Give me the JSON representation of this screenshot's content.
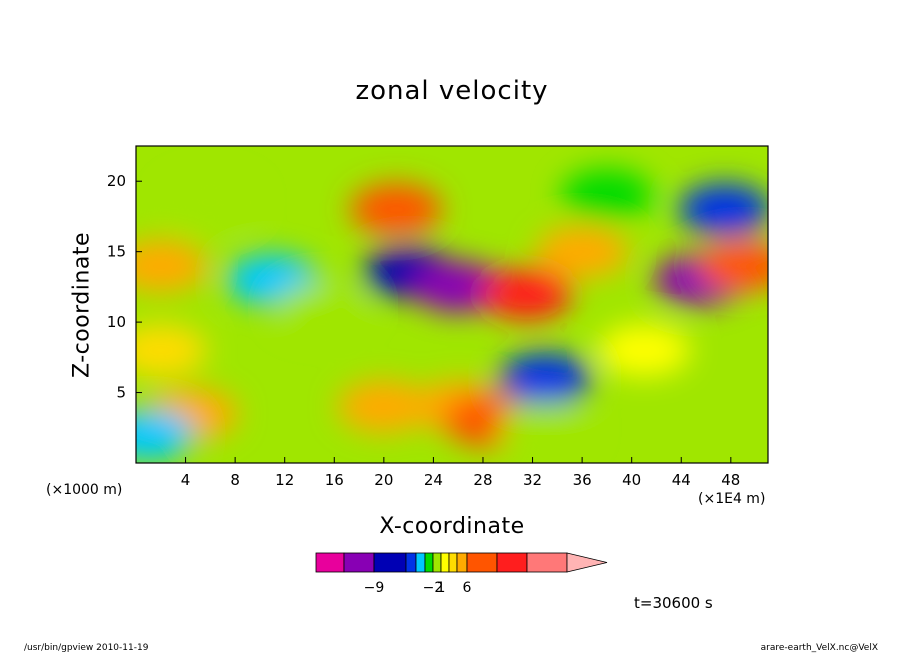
{
  "chart_data": {
    "type": "heatmap",
    "title": "zonal velocity",
    "xlabel": "X-coordinate",
    "ylabel": "Z-coordinate",
    "x_unit_left": "(×1000 m)",
    "x_unit_right": "(×1E4 m)",
    "xlim": [
      0,
      51
    ],
    "ylim": [
      0,
      22.5
    ],
    "x_ticks": [
      4,
      8,
      12,
      16,
      20,
      24,
      28,
      32,
      36,
      40,
      44,
      48
    ],
    "y_ticks": [
      5,
      10,
      15,
      20
    ],
    "colorbar": {
      "colors": [
        "#e8009c",
        "#8800b4",
        "#0000b4",
        "#0032e6",
        "#00c8ff",
        "#00dc00",
        "#a0e600",
        "#ffff00",
        "#ffdc00",
        "#ffaa00",
        "#ff5500",
        "#ff1e1e",
        "#ff7878",
        "#ffb4b4"
      ],
      "labels": [
        {
          "text": "−9",
          "index": 1
        },
        {
          "text": "−2",
          "index": 5
        },
        {
          "text": "1",
          "index": 6
        },
        {
          "text": "6",
          "index": 9
        }
      ]
    },
    "features": [
      {
        "x": 4.5,
        "z": 3.5,
        "value": 6
      },
      {
        "x": 11,
        "z": 13,
        "value": -2
      },
      {
        "x": 15,
        "z": 11,
        "value": 1
      },
      {
        "x": 20,
        "z": 4,
        "value": 6
      },
      {
        "x": 21,
        "z": 18,
        "value": 8
      },
      {
        "x": 22,
        "z": 13.5,
        "value": -7
      },
      {
        "x": 26,
        "z": 12.5,
        "value": -8
      },
      {
        "x": 31.5,
        "z": 12,
        "value": 9
      },
      {
        "x": 26,
        "z": 4,
        "value": 6
      },
      {
        "x": 28.5,
        "z": 3,
        "value": 8
      },
      {
        "x": 33,
        "z": 6,
        "value": -3
      },
      {
        "x": 36,
        "z": 15,
        "value": 6
      },
      {
        "x": 41,
        "z": 8,
        "value": 3
      },
      {
        "x": 45.5,
        "z": 13,
        "value": -8
      },
      {
        "x": 47.5,
        "z": 18,
        "value": -5
      },
      {
        "x": 49,
        "z": 14,
        "value": 8
      },
      {
        "x": 2,
        "z": 14,
        "value": 6
      },
      {
        "x": 2,
        "z": 8,
        "value": 5
      },
      {
        "x": 1,
        "z": 2,
        "value": -2
      },
      {
        "x": 33,
        "z": 2.5,
        "value": 1
      },
      {
        "x": 6,
        "z": 18.5,
        "value": 1
      },
      {
        "x": 38,
        "z": 19,
        "value": -1
      }
    ],
    "grid": false,
    "legend": "colorbar-bottom"
  },
  "time_label": "t=30600 s",
  "footer_left": "/usr/bin/gpview   2010-11-19",
  "footer_right": "arare-earth_VelX.nc@VelX"
}
